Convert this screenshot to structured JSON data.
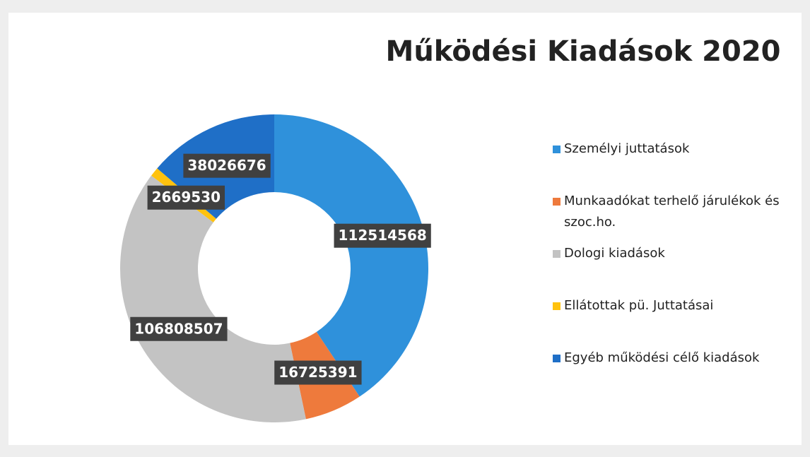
{
  "chart_data": {
    "type": "donut",
    "title": "Működési Kiadások 2020",
    "categories": [
      "Személyi juttatások",
      "Munkaadókat terhelő járulékok és szoc.ho.",
      "Dologi kiadások",
      "Ellátottak pü. Juttatásai",
      "Egyéb működési célő kiadások"
    ],
    "values": [
      112514568,
      16725391,
      106808507,
      2669530,
      38026676
    ],
    "colors": [
      "#2f91db",
      "#ee7a3c",
      "#c3c3c3",
      "#ffc20e",
      "#1f6fc7"
    ],
    "legend": "right"
  }
}
